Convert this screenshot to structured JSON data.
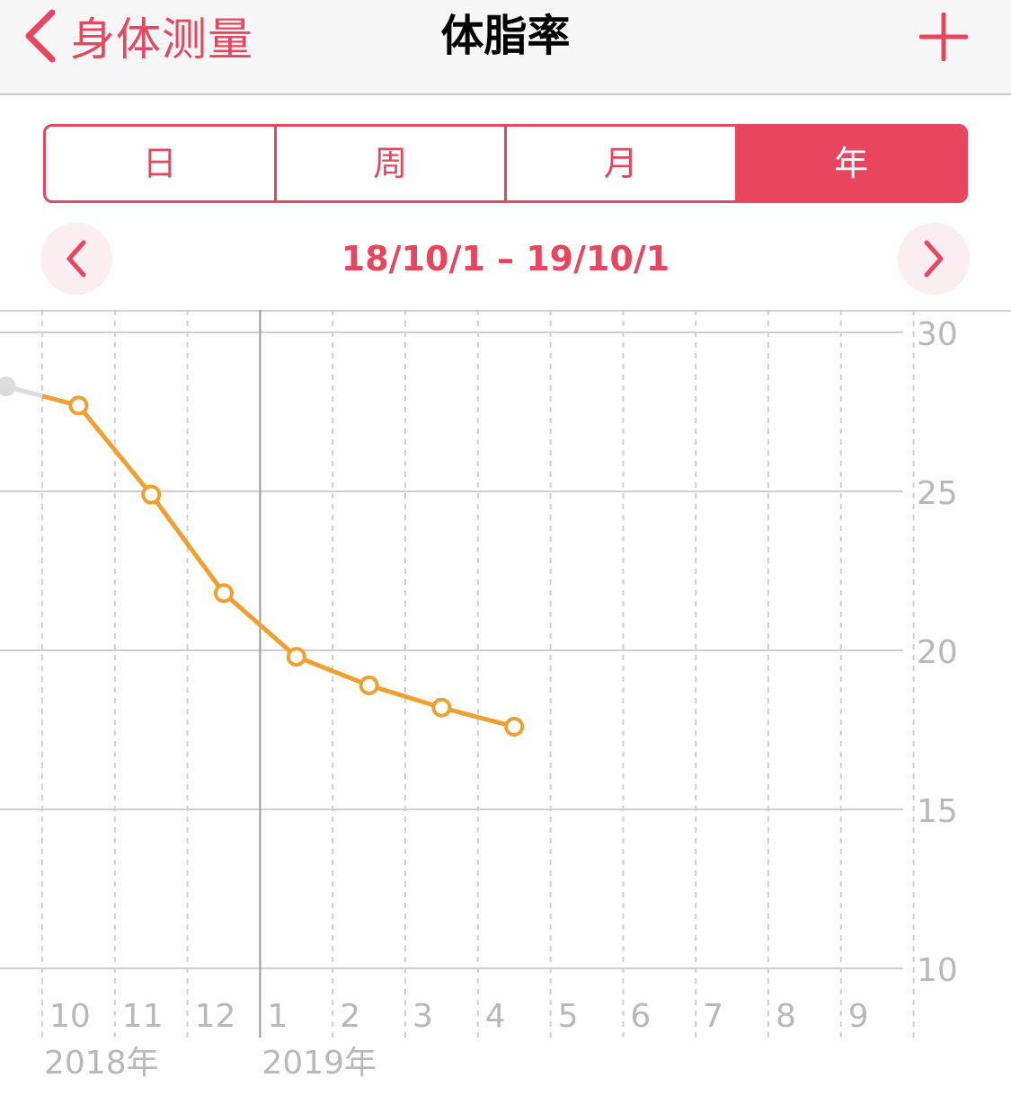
{
  "nav": {
    "back_label": "身体测量",
    "title": "体脂率"
  },
  "segments": [
    {
      "label": "日",
      "active": false
    },
    {
      "label": "周",
      "active": false
    },
    {
      "label": "月",
      "active": false
    },
    {
      "label": "年",
      "active": true
    }
  ],
  "date_range": "18/10/1 – 19/10/1",
  "colors": {
    "accent": "#e8455f",
    "line": "#f0a030",
    "previous_point": "#dcdcdc"
  },
  "icons": {
    "back": "chevron-left-icon",
    "add": "plus-icon",
    "prev": "chevron-left-icon",
    "next": "chevron-right-icon"
  },
  "chart_data": {
    "type": "line",
    "x_tick_labels": [
      "10",
      "11",
      "12",
      "1",
      "2",
      "3",
      "4",
      "5",
      "6",
      "7",
      "8",
      "9"
    ],
    "year_labels": [
      {
        "label": "2018年",
        "at_month_index": 0
      },
      {
        "label": "2019年",
        "at_month_index": 3
      }
    ],
    "y_ticks": [
      30,
      25,
      20,
      15,
      10
    ],
    "ylim": [
      10,
      30
    ],
    "y_axis_position": "right",
    "grid": true,
    "series": [
      {
        "x": [
          0.5,
          1.5,
          2.5,
          3.5,
          4.5,
          5.5,
          6.5
        ],
        "values": [
          27.7,
          24.9,
          21.8,
          19.8,
          18.9,
          18.2,
          17.6
        ]
      }
    ],
    "previous_point": {
      "x": -0.5,
      "value": 28.3
    }
  }
}
